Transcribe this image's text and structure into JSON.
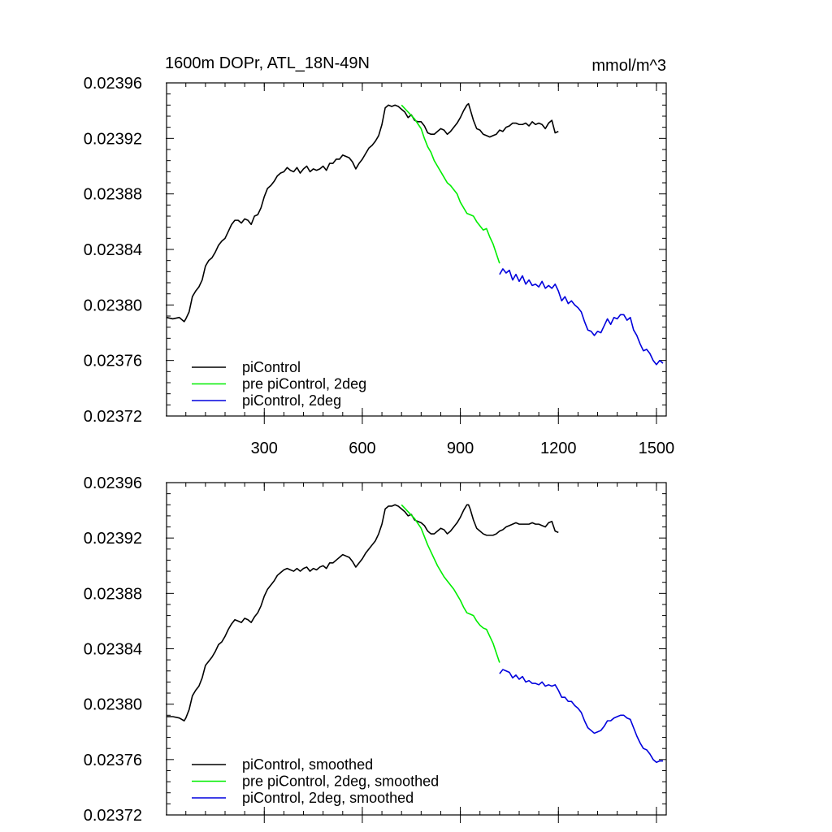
{
  "figure": {
    "title_left": "1600m DOPr, ATL_18N-49N",
    "title_right": "mmol/m^3"
  },
  "chart_data": [
    {
      "type": "line",
      "panel": "top",
      "title": "1600m DOPr, ATL_18N-49N",
      "units": "mmol/m^3",
      "xlim": [
        1,
        1530
      ],
      "ylim": [
        0.02372,
        0.02396
      ],
      "x_ticks": [
        300,
        600,
        900,
        1200,
        1500
      ],
      "x_tick_labels": [
        "300",
        "600",
        "900",
        "1200",
        "1500"
      ],
      "y_ticks": [
        0.02372,
        0.02376,
        0.0238,
        0.02384,
        0.02388,
        0.02392,
        0.02396
      ],
      "y_tick_labels": [
        "0.02372",
        "0.02376",
        "0.02380",
        "0.02384",
        "0.02388",
        "0.02392",
        "0.02396"
      ],
      "legend_position": "bottom-left",
      "series": [
        {
          "name": "piControl",
          "color": "#000000",
          "x": [
            1,
            20,
            40,
            55,
            60,
            70,
            80,
            90,
            100,
            110,
            120,
            130,
            140,
            150,
            160,
            170,
            180,
            190,
            200,
            210,
            220,
            230,
            240,
            250,
            260,
            270,
            280,
            290,
            300,
            310,
            320,
            330,
            340,
            350,
            360,
            370,
            380,
            390,
            400,
            410,
            420,
            430,
            440,
            450,
            460,
            470,
            480,
            490,
            500,
            510,
            520,
            530,
            540,
            550,
            560,
            570,
            580,
            590,
            600,
            610,
            620,
            630,
            640,
            650,
            660,
            670,
            680,
            690,
            700,
            710,
            720,
            730,
            740,
            750,
            760,
            770,
            780,
            790,
            800,
            810,
            820,
            830,
            840,
            850,
            860,
            870,
            880,
            890,
            900,
            910,
            920,
            925,
            930,
            940,
            950,
            960,
            970,
            980,
            990,
            1000,
            1010,
            1020,
            1030,
            1040,
            1050,
            1060,
            1070,
            1080,
            1090,
            1100,
            1110,
            1120,
            1130,
            1140,
            1150,
            1160,
            1170,
            1180,
            1190,
            1200
          ],
          "y": [
            0.023791,
            0.02379,
            0.023791,
            0.023788,
            0.02379,
            0.023795,
            0.023806,
            0.02381,
            0.023813,
            0.023818,
            0.023828,
            0.023832,
            0.023834,
            0.023838,
            0.023843,
            0.023846,
            0.023848,
            0.023853,
            0.023858,
            0.023861,
            0.023861,
            0.023859,
            0.023862,
            0.023861,
            0.023858,
            0.023864,
            0.023865,
            0.02387,
            0.023878,
            0.023884,
            0.023886,
            0.023889,
            0.023893,
            0.023895,
            0.023896,
            0.023899,
            0.023897,
            0.023896,
            0.023899,
            0.023895,
            0.023898,
            0.0239,
            0.023896,
            0.023898,
            0.023897,
            0.023898,
            0.0239,
            0.023897,
            0.023902,
            0.023902,
            0.023905,
            0.023905,
            0.023908,
            0.023907,
            0.023906,
            0.023903,
            0.023898,
            0.023902,
            0.023905,
            0.023909,
            0.023913,
            0.023915,
            0.023918,
            0.023922,
            0.02393,
            0.023942,
            0.023944,
            0.023943,
            0.023944,
            0.023943,
            0.023941,
            0.023939,
            0.023935,
            0.023937,
            0.023933,
            0.023932,
            0.023932,
            0.023929,
            0.023924,
            0.023923,
            0.023923,
            0.023925,
            0.023927,
            0.023926,
            0.023923,
            0.023925,
            0.023928,
            0.023931,
            0.023935,
            0.02394,
            0.023944,
            0.023945,
            0.023941,
            0.023933,
            0.023927,
            0.023926,
            0.023923,
            0.023922,
            0.023921,
            0.023922,
            0.023923,
            0.023926,
            0.023925,
            0.023928,
            0.023929,
            0.023931,
            0.023931,
            0.02393,
            0.02393,
            0.023931,
            0.023929,
            0.023932,
            0.02393,
            0.023931,
            0.02393,
            0.023927,
            0.023931,
            0.023933,
            0.023924,
            0.023925
          ]
        },
        {
          "name": "pre piControl, 2deg",
          "color": "#00ee00",
          "x": [
            720,
            740,
            760,
            780,
            790,
            800,
            810,
            820,
            830,
            840,
            850,
            860,
            870,
            880,
            890,
            900,
            910,
            920,
            930,
            940,
            950,
            960,
            970,
            980,
            990,
            1000,
            1010,
            1020
          ],
          "y": [
            0.023944,
            0.023939,
            0.023934,
            0.023927,
            0.02392,
            0.023914,
            0.02391,
            0.023904,
            0.0239,
            0.023896,
            0.023892,
            0.023888,
            0.023886,
            0.023883,
            0.02388,
            0.023874,
            0.02387,
            0.023866,
            0.023865,
            0.023864,
            0.02386,
            0.023857,
            0.023854,
            0.023855,
            0.023849,
            0.023844,
            0.023837,
            0.02383
          ]
        },
        {
          "name": "piControl, 2deg",
          "color": "#0000dd",
          "x": [
            1020,
            1030,
            1040,
            1050,
            1060,
            1070,
            1080,
            1090,
            1100,
            1110,
            1120,
            1130,
            1140,
            1150,
            1160,
            1170,
            1180,
            1190,
            1200,
            1210,
            1220,
            1230,
            1240,
            1250,
            1260,
            1270,
            1280,
            1290,
            1300,
            1310,
            1320,
            1330,
            1340,
            1350,
            1360,
            1370,
            1380,
            1390,
            1400,
            1410,
            1420,
            1430,
            1440,
            1450,
            1460,
            1470,
            1480,
            1490,
            1500,
            1510,
            1520
          ],
          "y": [
            0.023822,
            0.023826,
            0.023823,
            0.023825,
            0.023818,
            0.023822,
            0.023817,
            0.023821,
            0.023815,
            0.023818,
            0.023814,
            0.023815,
            0.023813,
            0.023817,
            0.023812,
            0.023814,
            0.023812,
            0.023815,
            0.02381,
            0.023803,
            0.023806,
            0.023801,
            0.023803,
            0.0238,
            0.023798,
            0.023795,
            0.023788,
            0.023782,
            0.023781,
            0.023778,
            0.023781,
            0.02378,
            0.023785,
            0.02379,
            0.023786,
            0.023791,
            0.02379,
            0.023793,
            0.023793,
            0.023789,
            0.023791,
            0.023782,
            0.023778,
            0.023772,
            0.023767,
            0.023768,
            0.023765,
            0.02376,
            0.023757,
            0.02376,
            0.023758
          ]
        }
      ]
    },
    {
      "type": "line",
      "panel": "bottom",
      "xlim": [
        1,
        1530
      ],
      "ylim": [
        0.02372,
        0.02396
      ],
      "x_ticks": [
        300,
        600,
        900,
        1200,
        1500
      ],
      "y_ticks": [
        0.02372,
        0.02376,
        0.0238,
        0.02384,
        0.02388,
        0.02392,
        0.02396
      ],
      "y_tick_labels": [
        "0.02372",
        "0.02376",
        "0.02380",
        "0.02384",
        "0.02388",
        "0.02392",
        "0.02396"
      ],
      "legend_position": "bottom-left",
      "series": [
        {
          "name": "piControl, smoothed",
          "color": "#000000",
          "x": [
            1,
            20,
            40,
            55,
            60,
            70,
            80,
            90,
            100,
            110,
            120,
            130,
            140,
            150,
            160,
            170,
            180,
            190,
            200,
            210,
            220,
            230,
            240,
            250,
            260,
            270,
            280,
            290,
            300,
            310,
            320,
            330,
            340,
            350,
            360,
            370,
            380,
            390,
            400,
            410,
            420,
            430,
            440,
            450,
            460,
            470,
            480,
            490,
            500,
            510,
            520,
            530,
            540,
            550,
            560,
            570,
            580,
            590,
            600,
            610,
            620,
            630,
            640,
            650,
            660,
            670,
            680,
            690,
            700,
            710,
            720,
            730,
            740,
            750,
            760,
            770,
            780,
            790,
            800,
            810,
            820,
            830,
            840,
            850,
            860,
            870,
            880,
            890,
            900,
            910,
            920,
            925,
            930,
            940,
            950,
            960,
            970,
            980,
            990,
            1000,
            1010,
            1020,
            1030,
            1040,
            1050,
            1060,
            1070,
            1080,
            1090,
            1100,
            1110,
            1120,
            1130,
            1140,
            1150,
            1160,
            1170,
            1180,
            1190,
            1200
          ],
          "y": [
            0.023791,
            0.023791,
            0.02379,
            0.023788,
            0.02379,
            0.023796,
            0.023806,
            0.02381,
            0.023813,
            0.023819,
            0.023828,
            0.023831,
            0.023834,
            0.023838,
            0.023843,
            0.023845,
            0.023849,
            0.023854,
            0.023858,
            0.023861,
            0.02386,
            0.023859,
            0.023862,
            0.023861,
            0.023859,
            0.023863,
            0.023866,
            0.023871,
            0.023878,
            0.023883,
            0.023886,
            0.023889,
            0.023893,
            0.023895,
            0.023897,
            0.023898,
            0.023897,
            0.023896,
            0.023898,
            0.023896,
            0.023898,
            0.023899,
            0.023896,
            0.023898,
            0.023897,
            0.023899,
            0.0239,
            0.023898,
            0.023902,
            0.023902,
            0.023904,
            0.023906,
            0.023908,
            0.023907,
            0.023906,
            0.023903,
            0.023899,
            0.023902,
            0.023905,
            0.023909,
            0.023912,
            0.023915,
            0.023918,
            0.023923,
            0.02393,
            0.023941,
            0.023943,
            0.023943,
            0.023944,
            0.023943,
            0.023941,
            0.023939,
            0.023936,
            0.023937,
            0.023933,
            0.023932,
            0.023931,
            0.023929,
            0.023925,
            0.023923,
            0.023923,
            0.023925,
            0.023927,
            0.023926,
            0.023923,
            0.023925,
            0.023928,
            0.023931,
            0.023935,
            0.02394,
            0.023944,
            0.023944,
            0.023941,
            0.023933,
            0.023927,
            0.023925,
            0.023923,
            0.023922,
            0.023922,
            0.023922,
            0.023923,
            0.023925,
            0.023926,
            0.023928,
            0.023929,
            0.02393,
            0.023931,
            0.02393,
            0.02393,
            0.02393,
            0.02393,
            0.023931,
            0.02393,
            0.02393,
            0.023929,
            0.023928,
            0.023931,
            0.023932,
            0.023925,
            0.023924
          ]
        },
        {
          "name": "pre piControl, 2deg, smoothed",
          "color": "#00ee00",
          "x": [
            720,
            740,
            760,
            780,
            790,
            800,
            810,
            820,
            830,
            840,
            850,
            860,
            870,
            880,
            890,
            900,
            910,
            920,
            930,
            940,
            950,
            960,
            970,
            980,
            990,
            1000,
            1010,
            1020
          ],
          "y": [
            0.023944,
            0.023939,
            0.023934,
            0.023927,
            0.023921,
            0.023915,
            0.02391,
            0.023905,
            0.0239,
            0.023896,
            0.023892,
            0.023889,
            0.023886,
            0.023883,
            0.023879,
            0.023875,
            0.02387,
            0.023866,
            0.023865,
            0.023864,
            0.02386,
            0.023857,
            0.023855,
            0.023854,
            0.023849,
            0.023844,
            0.023837,
            0.02383
          ]
        },
        {
          "name": "piControl, 2deg, smoothed",
          "color": "#0000dd",
          "x": [
            1020,
            1030,
            1040,
            1050,
            1060,
            1070,
            1080,
            1090,
            1100,
            1110,
            1120,
            1130,
            1140,
            1150,
            1160,
            1170,
            1180,
            1190,
            1200,
            1210,
            1220,
            1230,
            1240,
            1250,
            1260,
            1270,
            1280,
            1290,
            1300,
            1310,
            1320,
            1330,
            1340,
            1350,
            1360,
            1370,
            1380,
            1390,
            1400,
            1410,
            1420,
            1430,
            1440,
            1450,
            1460,
            1470,
            1480,
            1490,
            1500,
            1510,
            1520
          ],
          "y": [
            0.023822,
            0.023825,
            0.023824,
            0.023823,
            0.023819,
            0.023821,
            0.023818,
            0.02382,
            0.023816,
            0.023817,
            0.023815,
            0.023815,
            0.023814,
            0.023816,
            0.023813,
            0.023814,
            0.023813,
            0.023814,
            0.02381,
            0.023805,
            0.023805,
            0.023802,
            0.023802,
            0.023799,
            0.023797,
            0.023794,
            0.023788,
            0.023783,
            0.023781,
            0.023779,
            0.02378,
            0.023781,
            0.023784,
            0.023788,
            0.023788,
            0.02379,
            0.023791,
            0.023792,
            0.023792,
            0.02379,
            0.023789,
            0.023783,
            0.023777,
            0.023772,
            0.023768,
            0.023767,
            0.023764,
            0.02376,
            0.023758,
            0.023759,
            0.023759
          ]
        }
      ]
    }
  ]
}
